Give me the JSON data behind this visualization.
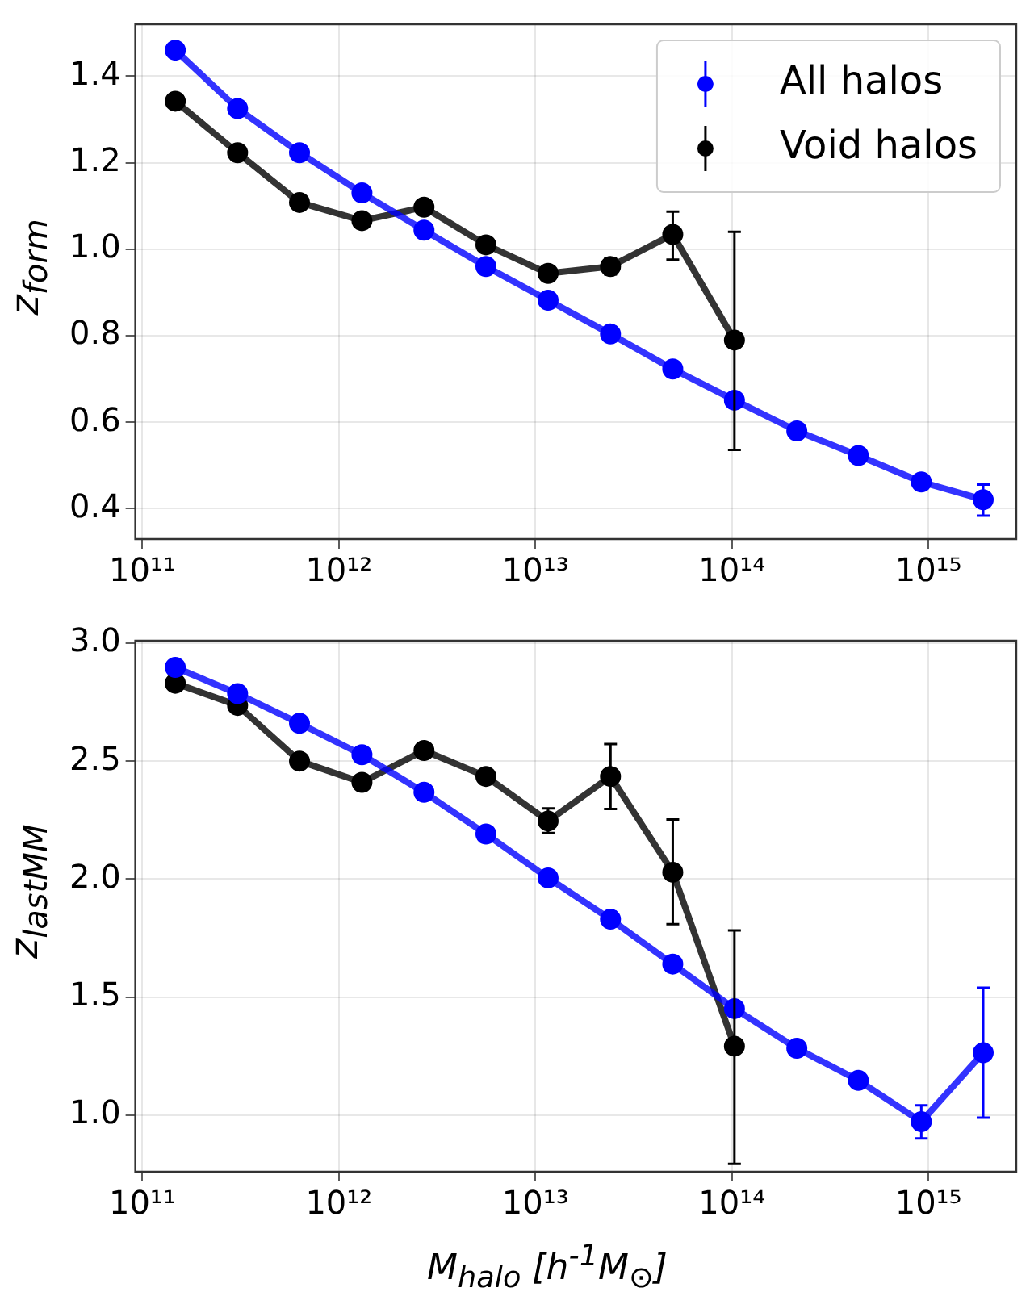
{
  "chart_data": [
    {
      "type": "line",
      "ylabel": "z$_{form}$",
      "log": "x",
      "grid": true,
      "legend": "top right",
      "marker": "circle",
      "line_style": "solid",
      "xlim": [
        92000000000.0,
        2800000000000000.0
      ],
      "xticks": [
        {
          "value": 100000000000.0,
          "label": "10¹¹"
        },
        {
          "value": 1000000000000.0,
          "label": "10¹²"
        },
        {
          "value": 10000000000000.0,
          "label": "10¹³"
        },
        {
          "value": 100000000000000.0,
          "label": "10¹⁴"
        },
        {
          "value": 1000000000000000.0,
          "label": "10¹⁵"
        }
      ],
      "ylim": [
        0.33,
        1.52
      ],
      "yticks": [
        0.4,
        0.6,
        0.8,
        {
          "value": 1.0,
          "label": "1.0"
        },
        1.2,
        1.4
      ],
      "x": [
        147000000000.0,
        305000000000.0,
        630000000000.0,
        1310000000000.0,
        2710000000000.0,
        5600000000000.0,
        11600000000000.0,
        24100000000000.0,
        50000000000000.0,
        103000000000000.0,
        214000000000000.0,
        440000000000000.0,
        920000000000000.0,
        1900000000000000.0
      ],
      "series": [
        {
          "name": "All halos",
          "color": "#0000ff",
          "values": [
            1.46,
            1.325,
            1.223,
            1.13,
            1.044,
            0.96,
            0.882,
            0.804,
            0.723,
            0.651,
            0.58,
            0.523,
            0.462,
            0.421
          ],
          "errors": [
            null,
            null,
            null,
            null,
            null,
            null,
            null,
            null,
            null,
            null,
            null,
            null,
            null,
            [
              0.384,
              0.456
            ]
          ]
        },
        {
          "name": "Void halos",
          "color": "#000000",
          "values": [
            1.342,
            1.223,
            1.108,
            1.066,
            1.097,
            1.01,
            0.944,
            0.96,
            1.034,
            0.79,
            null,
            null,
            null,
            null
          ],
          "errors": [
            null,
            null,
            null,
            null,
            null,
            null,
            null,
            [
              0.942,
              0.98
            ],
            [
              0.976,
              1.087
            ],
            [
              0.536,
              1.04
            ],
            null,
            null,
            null,
            null
          ]
        }
      ]
    },
    {
      "type": "line",
      "ylabel": "z$_{lastMM}$",
      "xlabel": "M$_{halo}$ [h$^{-1}$M$_{⊙}$]",
      "log": "x",
      "grid": true,
      "marker": "circle",
      "line_style": "solid",
      "xlim": [
        92000000000.0,
        2800000000000000.0
      ],
      "xticks": [
        {
          "value": 100000000000.0,
          "label": "10¹¹"
        },
        {
          "value": 1000000000000.0,
          "label": "10¹²"
        },
        {
          "value": 10000000000000.0,
          "label": "10¹³"
        },
        {
          "value": 100000000000000.0,
          "label": "10¹⁴"
        },
        {
          "value": 1000000000000000.0,
          "label": "10¹⁵"
        }
      ],
      "ylim": [
        0.76,
        3.01
      ],
      "yticks": [
        {
          "value": 1.0,
          "label": "1.0"
        },
        1.5,
        {
          "value": 2.0,
          "label": "2.0"
        },
        2.5,
        {
          "value": 3.0,
          "label": "3.0"
        }
      ],
      "x": [
        147000000000.0,
        305000000000.0,
        630000000000.0,
        1310000000000.0,
        2710000000000.0,
        5600000000000.0,
        11600000000000.0,
        24100000000000.0,
        50000000000000.0,
        103000000000000.0,
        214000000000000.0,
        440000000000000.0,
        920000000000000.0,
        1900000000000000.0
      ],
      "series": [
        {
          "color": "#0000ff",
          "values": [
            2.897,
            2.786,
            2.66,
            2.527,
            2.368,
            2.191,
            2.005,
            1.83,
            1.64,
            1.451,
            1.283,
            1.147,
            0.972,
            1.264
          ],
          "errors": [
            null,
            null,
            null,
            null,
            null,
            null,
            null,
            null,
            null,
            null,
            null,
            null,
            [
              0.901,
              1.041
            ],
            [
              0.989,
              1.54
            ]
          ]
        },
        {
          "color": "#000000",
          "values": [
            2.83,
            2.736,
            2.5,
            2.41,
            2.545,
            2.435,
            2.246,
            2.435,
            2.029,
            1.292,
            null,
            null,
            null,
            null
          ],
          "errors": [
            null,
            null,
            null,
            null,
            null,
            null,
            [
              2.195,
              2.3
            ],
            [
              2.297,
              2.572
            ],
            [
              1.809,
              2.253
            ],
            [
              0.793,
              1.782
            ],
            null,
            null,
            null,
            null
          ]
        }
      ]
    }
  ]
}
